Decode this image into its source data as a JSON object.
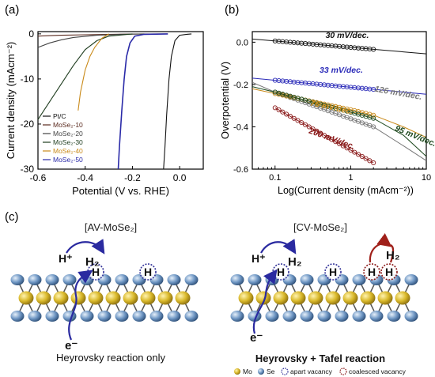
{
  "panels": {
    "a": "(a)",
    "b": "(b)",
    "c": "(c)"
  },
  "chart_data": [
    {
      "type": "line",
      "panel": "a",
      "xlabel": "Potential (V vs. RHE)",
      "ylabel": "Current density (mAcm⁻²)",
      "xlim": [
        -0.6,
        0.1
      ],
      "ylim": [
        -30,
        0.5
      ],
      "xticks": [
        -0.6,
        -0.4,
        -0.2,
        0.0
      ],
      "xtick_labels": [
        "-0.6",
        "-0.4",
        "-0.2",
        "0.0"
      ],
      "yticks": [
        0,
        -10,
        -20,
        -30
      ],
      "ytick_labels": [
        "0",
        "-10",
        "-20",
        "-30"
      ],
      "legend_placement": "bottom-left",
      "series": [
        {
          "name": "Pt/C",
          "color": "#111111",
          "x": [
            0.05,
            0.03,
            0.0,
            -0.02,
            -0.035,
            -0.045,
            -0.055,
            -0.062,
            -0.068
          ],
          "y": [
            0,
            -0.1,
            -0.3,
            -1.5,
            -5,
            -10,
            -18,
            -25,
            -30
          ]
        },
        {
          "name": "MoSe₂-10",
          "color": "#5a2a1e",
          "x": [
            -0.05,
            -0.2,
            -0.4,
            -0.5,
            -0.55,
            -0.6
          ],
          "y": [
            0,
            -0.05,
            -0.2,
            -0.3,
            -0.4,
            -0.5
          ]
        },
        {
          "name": "MoSe₂-20",
          "color": "#444444",
          "x": [
            -0.15,
            -0.25,
            -0.35,
            -0.45,
            -0.5,
            -0.55,
            -0.6
          ],
          "y": [
            0,
            -0.1,
            -0.3,
            -0.8,
            -1.3,
            -2.0,
            -3.0
          ]
        },
        {
          "name": "MoSe₂-30",
          "color": "#1f3d1f",
          "x": [
            -0.2,
            -0.3,
            -0.35,
            -0.4,
            -0.45,
            -0.5,
            -0.55,
            -0.6
          ],
          "y": [
            0,
            -0.5,
            -1.5,
            -3.5,
            -7,
            -11,
            -15,
            -19
          ]
        },
        {
          "name": "MoSe₂-40",
          "color": "#c98a1a",
          "x": [
            -0.3,
            -0.33,
            -0.36,
            -0.38,
            -0.4,
            -0.42,
            -0.43
          ],
          "y": [
            0,
            -1,
            -3,
            -5,
            -8,
            -13,
            -17
          ]
        },
        {
          "name": "MoSe₂-50",
          "color": "#2a2aa8",
          "x": [
            -0.05,
            -0.15,
            -0.19,
            -0.21,
            -0.225,
            -0.235,
            -0.245,
            -0.255,
            -0.26
          ],
          "y": [
            0,
            -0.1,
            -0.5,
            -2,
            -5,
            -10,
            -17,
            -25,
            -30
          ]
        }
      ]
    },
    {
      "type": "line",
      "panel": "b",
      "xlabel": "Log(Current density (mAcm⁻²))",
      "ylabel": "Overpotential (V)",
      "xscale": "log",
      "xlim": [
        0.05,
        10
      ],
      "ylim": [
        -0.6,
        0.05
      ],
      "xticks": [
        0.1,
        1,
        10
      ],
      "xtick_labels": [
        "0.1",
        "1",
        "10"
      ],
      "yticks": [
        0.0,
        -0.2,
        -0.4,
        -0.6
      ],
      "ytick_labels": [
        "0.0",
        "-0.2",
        "-0.4",
        "-0.6"
      ],
      "annotations": [
        {
          "text": "30 mV/dec.",
          "color": "#111111"
        },
        {
          "text": "33 mV/dec.",
          "color": "#2a2ab8"
        },
        {
          "text": "126 mV/dec.",
          "color": "#777777"
        },
        {
          "text": "76 mV/dec.",
          "color": "#c98a1a"
        },
        {
          "text": "95 mV/dec.",
          "color": "#1f4a1f"
        },
        {
          "text": "200 mV/dec.",
          "color": "#8a1a1a"
        }
      ],
      "series": [
        {
          "color": "#111111",
          "x": [
            0.05,
            10
          ],
          "y": [
            0.015,
            -0.055
          ]
        },
        {
          "color": "#2a2ab8",
          "x": [
            0.05,
            10
          ],
          "y": [
            -0.17,
            -0.246
          ]
        },
        {
          "color": "#777777",
          "x": [
            0.05,
            0.1,
            1,
            2,
            5,
            10
          ],
          "y": [
            -0.19,
            -0.236,
            -0.362,
            -0.4,
            -0.49,
            -0.56
          ]
        },
        {
          "color": "#c98a1a",
          "x": [
            0.05,
            0.1,
            1,
            2,
            5,
            10
          ],
          "y": [
            -0.22,
            -0.243,
            -0.319,
            -0.345,
            -0.4,
            -0.45
          ]
        },
        {
          "color": "#1f4a1f",
          "x": [
            0.05,
            0.1,
            1,
            2,
            5,
            10
          ],
          "y": [
            -0.21,
            -0.236,
            -0.331,
            -0.36,
            -0.44,
            -0.54
          ]
        },
        {
          "color": "#8a1a1a",
          "x": [
            0.1,
            1,
            2
          ],
          "y": [
            -0.31,
            -0.51,
            -0.57
          ]
        }
      ],
      "marked_ranges": [
        {
          "color": "#111111",
          "x": [
            0.1,
            2
          ]
        },
        {
          "color": "#2a2ab8",
          "x": [
            0.1,
            2
          ]
        },
        {
          "color": "#777777",
          "x": [
            0.1,
            2
          ]
        },
        {
          "color": "#c98a1a",
          "x": [
            0.1,
            2
          ]
        },
        {
          "color": "#1f4a1f",
          "x": [
            0.1,
            2
          ]
        },
        {
          "color": "#8a1a1a",
          "x": [
            0.1,
            2
          ]
        }
      ]
    }
  ],
  "schematic": {
    "left": {
      "title": "[AV-MoSe₂]",
      "caption": "Heyrovsky reaction only",
      "h_plus": "H⁺",
      "h2": "H₂",
      "electron": "e⁻",
      "h": "H"
    },
    "right": {
      "title": "[CV-MoSe₂]",
      "caption": "Heyrovsky + Tafel reaction",
      "h_plus": "H⁺",
      "h2": "H₂",
      "h2_tafel": "H₂",
      "electron": "e⁻",
      "h": "H"
    },
    "legend": {
      "mo": "Mo",
      "se": "Se",
      "apart": "apart vacancy",
      "coalesced": "coalesced vacancy"
    },
    "colors": {
      "mo": "#d9b82a",
      "se": "#5f89b8",
      "apart": "#333399",
      "coalesced": "#8a1a1a",
      "arrow_blue": "#2a2aa0",
      "arrow_red": "#a0201a"
    }
  }
}
